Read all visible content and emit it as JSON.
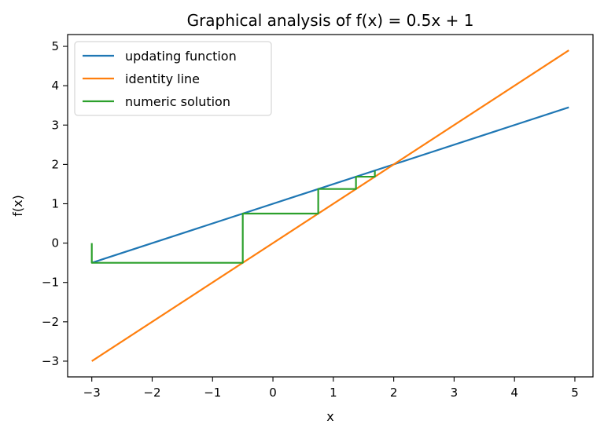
{
  "chart_data": {
    "type": "line",
    "title": "Graphical analysis of f(x) = 0.5x + 1",
    "xlabel": "x",
    "ylabel": "f(x)",
    "xlim": [
      -3.4,
      5.3
    ],
    "ylim": [
      -3.4,
      5.3
    ],
    "xticks": [
      -3,
      -2,
      -1,
      0,
      1,
      2,
      3,
      4,
      5
    ],
    "yticks": [
      -3,
      -2,
      -1,
      0,
      1,
      2,
      3,
      4,
      5
    ],
    "xtick_labels": [
      "−3",
      "−2",
      "−1",
      "0",
      "1",
      "2",
      "3",
      "4",
      "5"
    ],
    "ytick_labels": [
      "−3",
      "−2",
      "−1",
      "0",
      "1",
      "2",
      "3",
      "4",
      "5"
    ],
    "grid": false,
    "legend_position": "top-left",
    "series": [
      {
        "name": "updating function",
        "color": "#1f77b4",
        "x": [
          -3,
          4.9
        ],
        "y": [
          -0.5,
          3.45
        ]
      },
      {
        "name": "identity line",
        "color": "#ff7f0e",
        "x": [
          -3,
          4.9
        ],
        "y": [
          -3,
          4.9
        ]
      },
      {
        "name": "numeric solution",
        "color": "#2ca02c",
        "x": [
          -3,
          -3,
          -0.5,
          -0.5,
          0.75,
          0.75,
          1.375,
          1.375,
          1.6875,
          1.6875
        ],
        "y": [
          0,
          -0.5,
          -0.5,
          0.75,
          0.75,
          1.375,
          1.375,
          1.6875,
          1.6875,
          1.84375
        ]
      }
    ]
  }
}
